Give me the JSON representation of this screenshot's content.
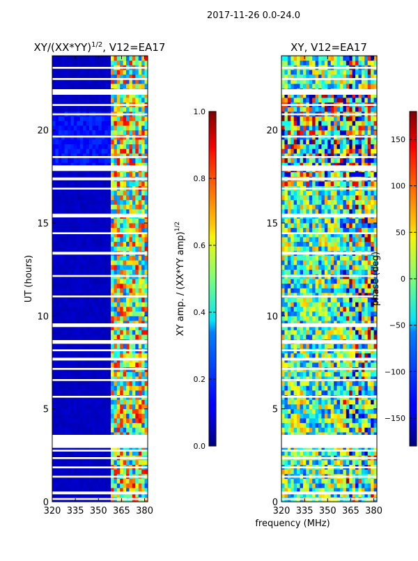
{
  "figure": {
    "suptitle": "2017-11-26 0.0-24.0",
    "shared_xlabel": "frequency (MHz)"
  },
  "chart_data": [
    {
      "type": "heatmap",
      "title": "XY/(XX*YY)",
      "title_sup": "1/2",
      "title_suffix": ", V12=EA17",
      "xlabel": "",
      "ylabel": "UT (hours)",
      "xlim": [
        320,
        382
      ],
      "ylim": [
        0,
        24
      ],
      "xticks": [
        320,
        335,
        350,
        365,
        380
      ],
      "yticks": [
        0,
        5,
        10,
        15,
        20
      ],
      "colorbar": {
        "label": "XY amp. / (XX*YY amp)",
        "label_sup": "1/2",
        "range": [
          0.0,
          1.0
        ],
        "ticks": [
          "0.0",
          "0.2",
          "0.4",
          "0.6",
          "0.8",
          "1.0"
        ],
        "tick_values": [
          0.0,
          0.2,
          0.4,
          0.6,
          0.8,
          1.0
        ]
      },
      "description_values": {
        "low_band_mhz": [
          320,
          359
        ],
        "low_band_level": 0.05,
        "high_band_mhz": [
          359,
          382
        ],
        "high_band_level_range": [
          0.2,
          0.9
        ]
      }
    },
    {
      "type": "heatmap",
      "title": "XY, V12=EA17",
      "xlabel": "frequency (MHz)",
      "ylabel": "",
      "xlim": [
        320,
        382
      ],
      "ylim": [
        0,
        24
      ],
      "xticks": [
        320,
        335,
        350,
        365,
        380
      ],
      "yticks": [
        0,
        5,
        10,
        15,
        20
      ],
      "colorbar": {
        "label": "phase (deg)",
        "range": [
          -180,
          180
        ],
        "ticks": [
          "−150",
          "−100",
          "−50",
          "0",
          "50",
          "100",
          "150"
        ],
        "tick_values": [
          -150,
          -100,
          -50,
          0,
          50,
          100,
          150
        ]
      }
    }
  ],
  "flagged_hours": [
    [
      0.1,
      0.2
    ],
    [
      0.4,
      0.55
    ],
    [
      1.3,
      1.4
    ],
    [
      1.8,
      1.9
    ],
    [
      2.3,
      2.4
    ],
    [
      2.7,
      2.8
    ],
    [
      3.3,
      3.5
    ],
    [
      3.5,
      2.9
    ],
    [
      3.05,
      3.6
    ],
    [
      5.6,
      5.7
    ],
    [
      6.5,
      6.6
    ],
    [
      7.1,
      7.2
    ],
    [
      7.6,
      7.75
    ],
    [
      8.1,
      8.2
    ],
    [
      8.5,
      8.7
    ],
    [
      9.4,
      9.6
    ],
    [
      11.0,
      11.1
    ],
    [
      12.1,
      12.2
    ],
    [
      13.3,
      13.45
    ],
    [
      14.4,
      14.5
    ],
    [
      15.3,
      15.5
    ],
    [
      16.8,
      16.9
    ],
    [
      17.3,
      17.45
    ],
    [
      17.8,
      18.1
    ],
    [
      18.5,
      18.6
    ],
    [
      19.6,
      19.7
    ],
    [
      20.8,
      20.9
    ],
    [
      21.3,
      21.4
    ],
    [
      21.9,
      22.2
    ],
    [
      22.7,
      22.8
    ],
    [
      23.3,
      23.4
    ]
  ]
}
